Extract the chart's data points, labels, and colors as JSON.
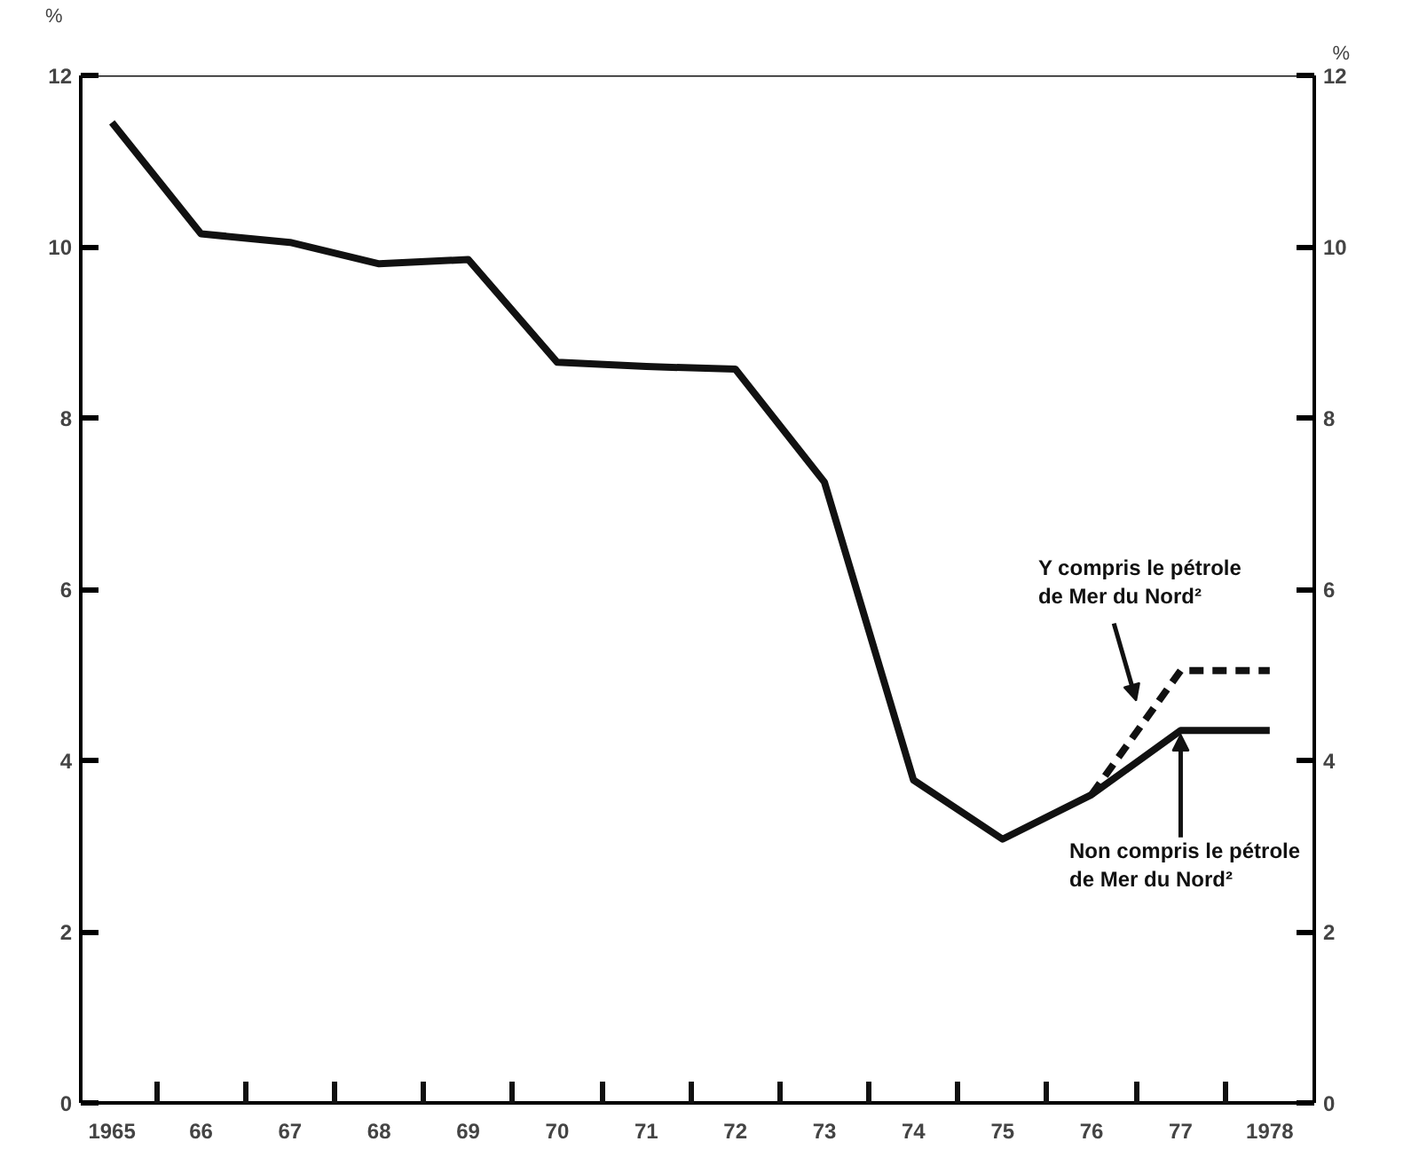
{
  "chart_data": {
    "type": "line",
    "ylabel": "%",
    "y2label": "%",
    "categories": [
      "1965",
      "66",
      "67",
      "68",
      "69",
      "70",
      "71",
      "72",
      "73",
      "74",
      "75",
      "76",
      "77",
      "1978"
    ],
    "series": [
      {
        "name": "Non compris le pétrole de Mer du Nord²",
        "color": "#111111",
        "line_style": "solid",
        "values": [
          11.45,
          10.15,
          10.05,
          9.8,
          9.85,
          8.65,
          8.6,
          8.57,
          7.25,
          3.77,
          3.08,
          3.6,
          4.35,
          4.35
        ]
      },
      {
        "name": "Y compris le pétrole de Mer du Nord²",
        "color": "#111111",
        "line_style": "dashed",
        "values": [
          null,
          null,
          null,
          null,
          null,
          null,
          null,
          null,
          null,
          null,
          null,
          3.6,
          5.05,
          5.05
        ]
      }
    ],
    "ylim": [
      0,
      12
    ],
    "yticks": [
      0,
      2,
      4,
      6,
      8,
      10,
      12
    ],
    "y2lim": [
      0,
      12
    ],
    "y2ticks": [
      0,
      2,
      4,
      6,
      8,
      10,
      12
    ],
    "grid": false,
    "marker": "none"
  }
}
